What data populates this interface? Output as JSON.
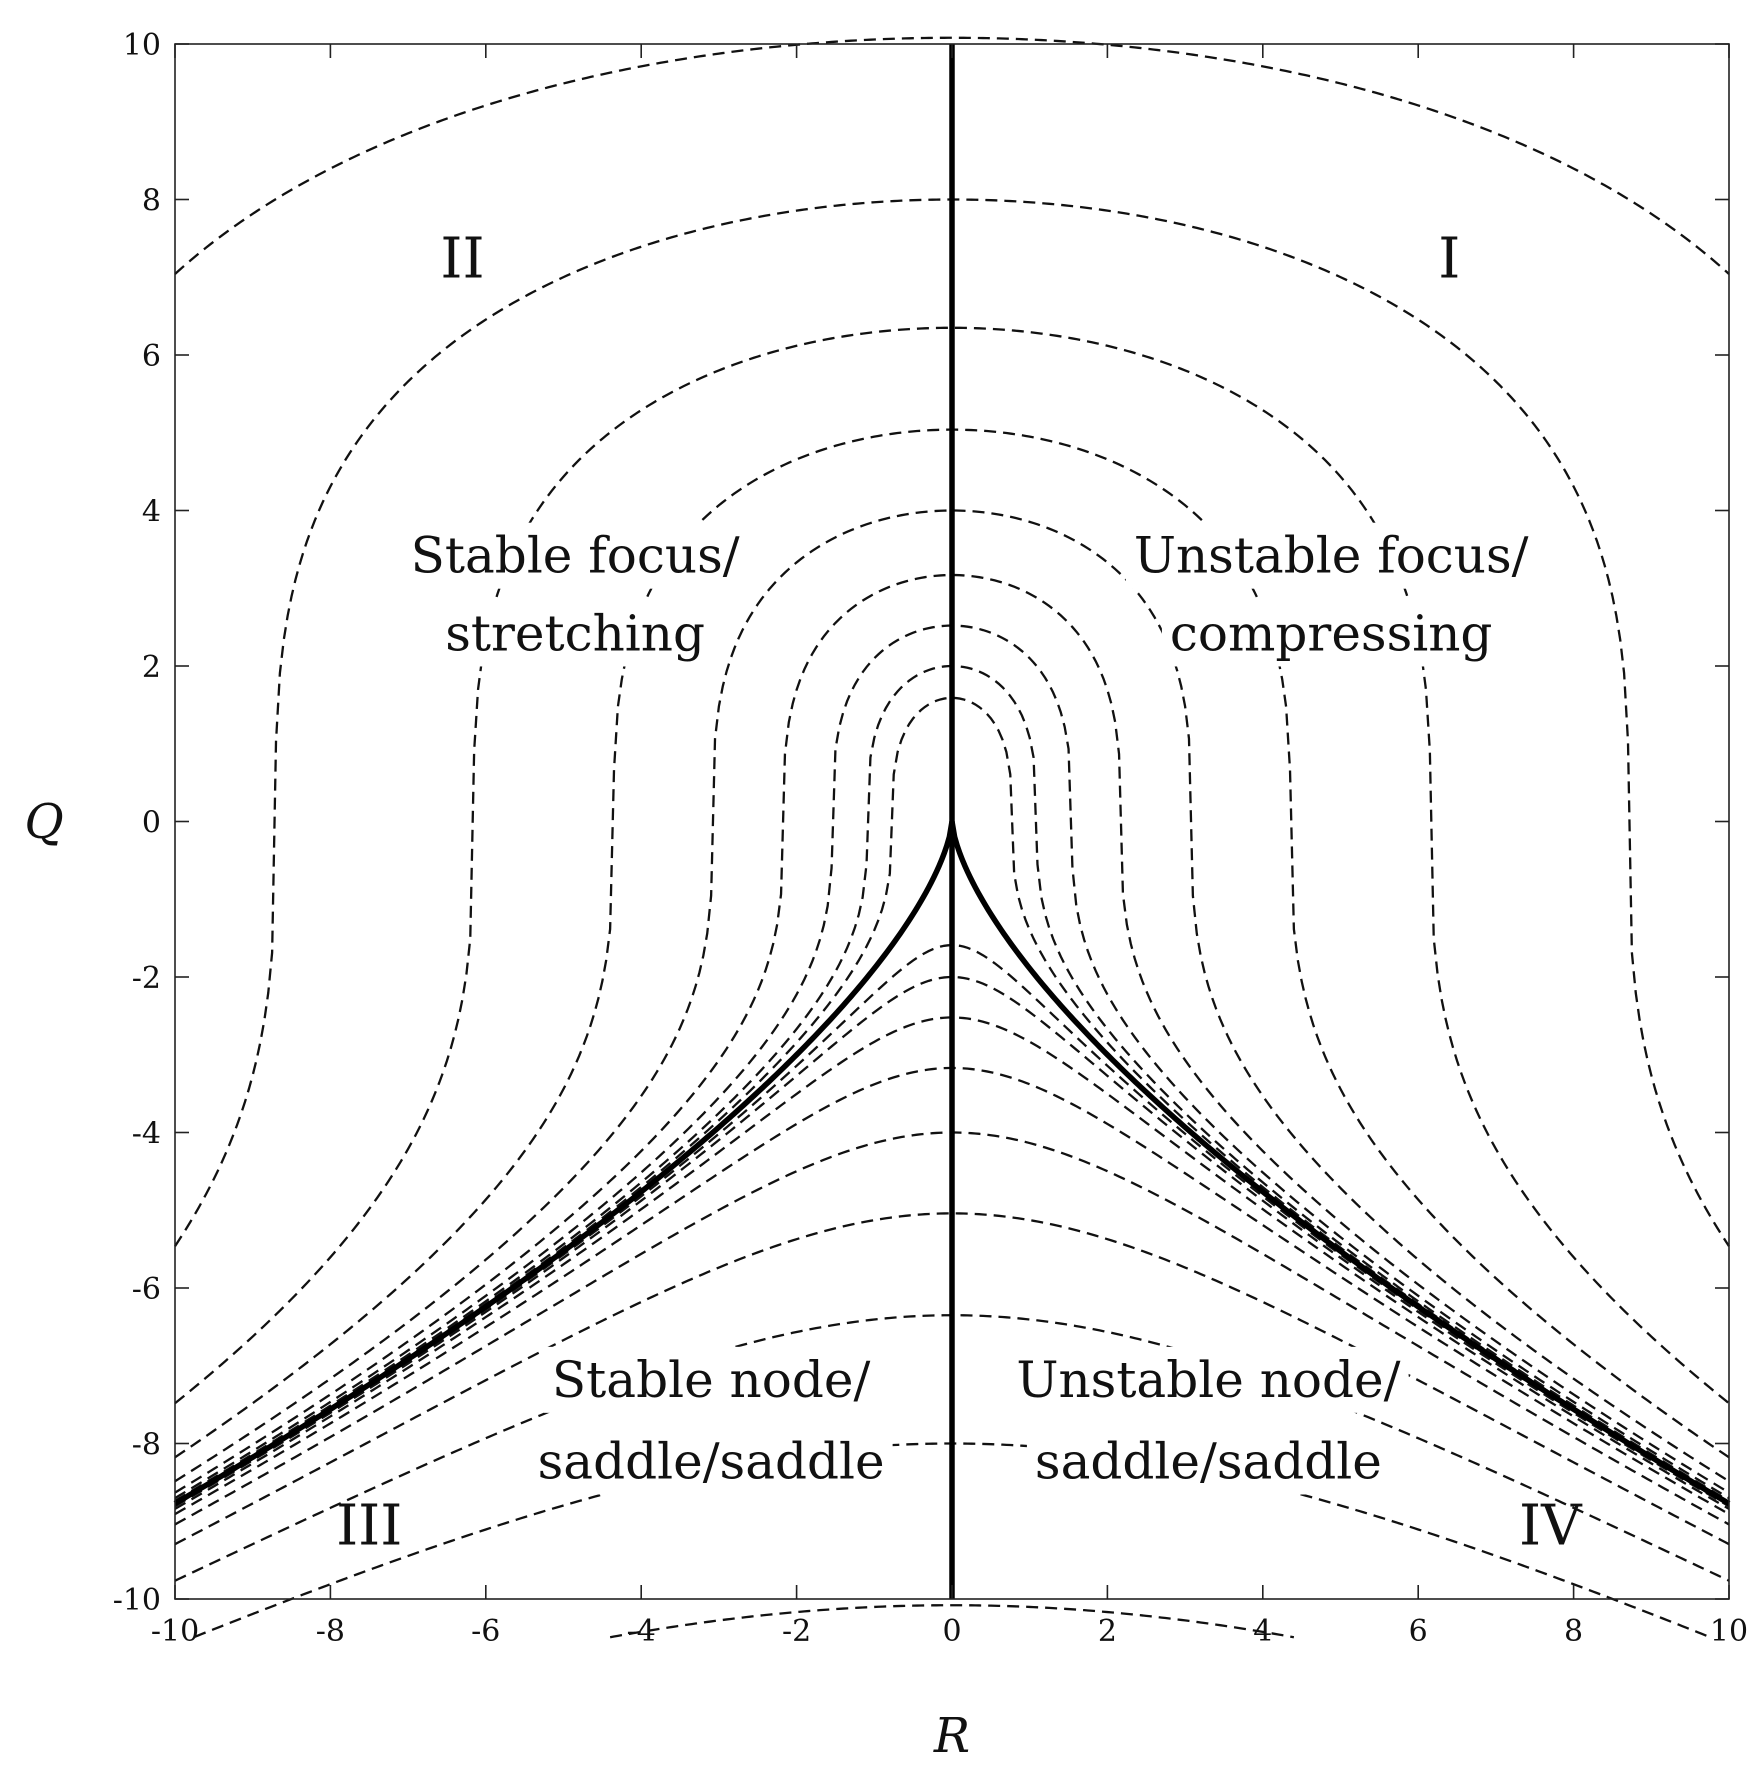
{
  "chart_data": {
    "type": "line",
    "title": "",
    "xlabel": "R",
    "ylabel": "Q",
    "xlim": [
      -10,
      10
    ],
    "ylim": [
      -10,
      10
    ],
    "xticks": [
      "-10",
      "-8",
      "-6",
      "-4",
      "-2",
      "0",
      "2",
      "4",
      "6",
      "8",
      "10"
    ],
    "yticks": [
      "-10",
      "-8",
      "-6",
      "-4",
      "-2",
      "0",
      "2",
      "4",
      "6",
      "8",
      "10"
    ],
    "grid": false,
    "legend": "none",
    "line_styles": {
      "contour": "dashed",
      "boundary": "solid-thick"
    },
    "boundary_curves": [
      {
        "name": "R = 0",
        "points": [
          [
            0,
            -10
          ],
          [
            0,
            10
          ]
        ]
      },
      {
        "name": "discriminant",
        "equation": "27R^2/4 + Q^3 = 0",
        "points": [
          [
            -10,
            -8.77
          ],
          [
            -8,
            -7.56
          ],
          [
            -6,
            -6.24
          ],
          [
            -4,
            -4.76
          ],
          [
            -2,
            -3.0
          ],
          [
            -1,
            -1.89
          ],
          [
            -0.5,
            -1.19
          ],
          [
            -0.2,
            -0.65
          ],
          [
            0,
            0
          ],
          [
            0.2,
            -0.65
          ],
          [
            0.5,
            -1.19
          ],
          [
            1,
            -1.89
          ],
          [
            2,
            -3.0
          ],
          [
            4,
            -4.76
          ],
          [
            6,
            -6.24
          ],
          [
            8,
            -7.56
          ],
          [
            10,
            -8.77
          ]
        ]
      }
    ],
    "contour_levels": {
      "upper_family_Q_at_R0": [
        1.59,
        2.0,
        2.52,
        3.17,
        4.0,
        5.04,
        6.35,
        8.0,
        10.08
      ],
      "lower_family_Q_at_R0": [
        -1.59,
        -2.0,
        -2.52,
        -3.17,
        -4.0,
        -5.04,
        -6.35,
        -8.0,
        -10.08
      ]
    },
    "regions": [
      "I",
      "II",
      "III",
      "IV"
    ],
    "annotations": {
      "upper_left": [
        "Stable focus/",
        "stretching"
      ],
      "upper_right": [
        "Unstable focus/",
        "compressing"
      ],
      "lower_left": [
        "Stable node/",
        "saddle/saddle"
      ],
      "lower_right": [
        "Unstable node/",
        "saddle/saddle"
      ]
    },
    "colors": {
      "line": "#000000",
      "background": "#ffffff"
    }
  }
}
